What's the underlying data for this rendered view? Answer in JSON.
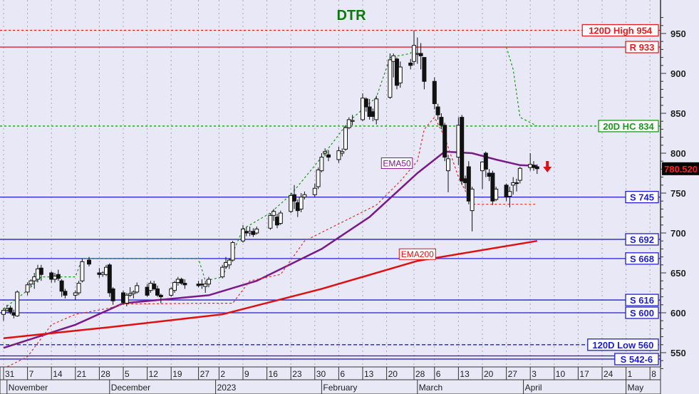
{
  "chart_data": {
    "type": "candlestick",
    "title": "DTR",
    "title_color": "#0a7a0a",
    "ylim": [
      530,
      975
    ],
    "yticks": [
      550,
      600,
      650,
      700,
      750,
      800,
      850,
      900,
      950
    ],
    "grid": "vertical dotted at weekly ticks",
    "last_price": "780.520",
    "xticks": [
      {
        "date": "2022-10-31",
        "label": "31"
      },
      {
        "date": "2022-11-07",
        "label": "7"
      },
      {
        "date": "2022-11-14",
        "label": "14"
      },
      {
        "date": "2022-11-21",
        "label": "21"
      },
      {
        "date": "2022-11-28",
        "label": "28"
      },
      {
        "date": "2022-12-05",
        "label": "5"
      },
      {
        "date": "2022-12-12",
        "label": "12"
      },
      {
        "date": "2022-12-19",
        "label": "19"
      },
      {
        "date": "2022-12-27",
        "label": "27"
      },
      {
        "date": "2023-01-02",
        "label": "2"
      },
      {
        "date": "2023-01-09",
        "label": "9"
      },
      {
        "date": "2023-01-16",
        "label": "16"
      },
      {
        "date": "2023-01-23",
        "label": "23"
      },
      {
        "date": "2023-01-30",
        "label": "30"
      },
      {
        "date": "2023-02-06",
        "label": "6"
      },
      {
        "date": "2023-02-13",
        "label": "13"
      },
      {
        "date": "2023-02-20",
        "label": "20"
      },
      {
        "date": "2023-02-28",
        "label": "28"
      },
      {
        "date": "2023-03-06",
        "label": "6"
      },
      {
        "date": "2023-03-13",
        "label": "13"
      },
      {
        "date": "2023-03-20",
        "label": "20"
      },
      {
        "date": "2023-03-27",
        "label": "27"
      },
      {
        "date": "2023-04-03",
        "label": "3"
      },
      {
        "date": "2023-04-10",
        "label": "10"
      },
      {
        "date": "2023-04-17",
        "label": "17"
      },
      {
        "date": "2023-04-24",
        "label": "24"
      },
      {
        "date": "2023-05-01",
        "label": "1"
      },
      {
        "date": "2023-05-08",
        "label": "8"
      }
    ],
    "months": [
      {
        "date": "2022-11-01",
        "label": "November"
      },
      {
        "date": "2022-12-01",
        "label": "December"
      },
      {
        "date": "2023-01-01",
        "label": "2023"
      },
      {
        "date": "2023-02-01",
        "label": "February"
      },
      {
        "date": "2023-03-01",
        "label": "March"
      },
      {
        "date": "2023-04-01",
        "label": "April"
      },
      {
        "date": "2023-05-01",
        "label": "May"
      }
    ],
    "candles_columns": [
      "date",
      "open",
      "high",
      "low",
      "close"
    ],
    "candles": [
      [
        "2022-10-31",
        598,
        606,
        590,
        603
      ],
      [
        "2022-11-01",
        603,
        610,
        600,
        605
      ],
      [
        "2022-11-02",
        606,
        609,
        598,
        601
      ],
      [
        "2022-11-03",
        600,
        604,
        593,
        597
      ],
      [
        "2022-11-04",
        596,
        628,
        595,
        626
      ],
      [
        "2022-11-07",
        626,
        638,
        622,
        635
      ],
      [
        "2022-11-08",
        636,
        642,
        633,
        640
      ],
      [
        "2022-11-09",
        640,
        650,
        630,
        645
      ],
      [
        "2022-11-10",
        642,
        660,
        638,
        655
      ],
      [
        "2022-11-11",
        656,
        660,
        640,
        648
      ],
      [
        "2022-11-14",
        650,
        652,
        638,
        642
      ],
      [
        "2022-11-15",
        642,
        650,
        638,
        646
      ],
      [
        "2022-11-16",
        648,
        654,
        640,
        643
      ],
      [
        "2022-11-17",
        640,
        642,
        620,
        627
      ],
      [
        "2022-11-18",
        627,
        630,
        618,
        622
      ],
      [
        "2022-11-21",
        622,
        628,
        616,
        625
      ],
      [
        "2022-11-22",
        625,
        640,
        622,
        637
      ],
      [
        "2022-11-23",
        640,
        668,
        638,
        664
      ],
      [
        "2022-11-25",
        666,
        670,
        658,
        661
      ],
      [
        "2022-11-28",
        650,
        656,
        644,
        648
      ],
      [
        "2022-11-29",
        648,
        652,
        645,
        650
      ],
      [
        "2022-11-30",
        648,
        660,
        646,
        657
      ],
      [
        "2022-12-01",
        660,
        662,
        620,
        625
      ],
      [
        "2022-12-02",
        630,
        632,
        610,
        615
      ],
      [
        "2022-12-05",
        625,
        628,
        610,
        613
      ],
      [
        "2022-12-06",
        612,
        625,
        608,
        622
      ],
      [
        "2022-12-07",
        622,
        632,
        620,
        624
      ],
      [
        "2022-12-08",
        624,
        628,
        618,
        626
      ],
      [
        "2022-12-09",
        626,
        638,
        624,
        634
      ],
      [
        "2022-12-12",
        632,
        636,
        620,
        622
      ],
      [
        "2022-12-13",
        628,
        640,
        625,
        637
      ],
      [
        "2022-12-14",
        636,
        640,
        628,
        630
      ],
      [
        "2022-12-15",
        630,
        634,
        620,
        622
      ],
      [
        "2022-12-16",
        622,
        624,
        612,
        620
      ],
      [
        "2022-12-19",
        622,
        632,
        620,
        630
      ],
      [
        "2022-12-20",
        628,
        640,
        625,
        638
      ],
      [
        "2022-12-21",
        638,
        645,
        634,
        642
      ],
      [
        "2022-12-22",
        642,
        644,
        635,
        637
      ],
      [
        "2022-12-23",
        637,
        642,
        630,
        635
      ],
      [
        "2022-12-27",
        636,
        640,
        632,
        634
      ],
      [
        "2022-12-28",
        636,
        642,
        630,
        635
      ],
      [
        "2022-12-29",
        633,
        640,
        625,
        636
      ],
      [
        "2022-12-30",
        636,
        645,
        632,
        642
      ],
      [
        "2023-01-03",
        645,
        660,
        643,
        657
      ],
      [
        "2023-01-04",
        658,
        670,
        655,
        663
      ],
      [
        "2023-01-05",
        660,
        668,
        655,
        666
      ],
      [
        "2023-01-06",
        666,
        690,
        664,
        688
      ],
      [
        "2023-01-09",
        690,
        710,
        688,
        705
      ],
      [
        "2023-01-10",
        702,
        708,
        696,
        700
      ],
      [
        "2023-01-11",
        700,
        708,
        696,
        702
      ],
      [
        "2023-01-12",
        702,
        706,
        695,
        698
      ],
      [
        "2023-01-13",
        700,
        708,
        698,
        705
      ],
      [
        "2023-01-17",
        706,
        725,
        704,
        722
      ],
      [
        "2023-01-18",
        722,
        730,
        715,
        727
      ],
      [
        "2023-01-19",
        720,
        724,
        706,
        710
      ],
      [
        "2023-01-20",
        712,
        728,
        710,
        725
      ],
      [
        "2023-01-23",
        727,
        750,
        725,
        747
      ],
      [
        "2023-01-24",
        748,
        760,
        730,
        740
      ],
      [
        "2023-01-25",
        738,
        742,
        720,
        728
      ],
      [
        "2023-01-26",
        730,
        750,
        726,
        745
      ],
      [
        "2023-01-27",
        745,
        752,
        742,
        748
      ],
      [
        "2023-01-30",
        748,
        762,
        745,
        756
      ],
      [
        "2023-01-31",
        758,
        782,
        755,
        779
      ],
      [
        "2023-02-01",
        778,
        800,
        776,
        795
      ],
      [
        "2023-02-02",
        800,
        806,
        796,
        802
      ],
      [
        "2023-02-03",
        798,
        804,
        790,
        795
      ],
      [
        "2023-02-06",
        792,
        808,
        788,
        803
      ],
      [
        "2023-02-07",
        800,
        806,
        796,
        802
      ],
      [
        "2023-02-08",
        805,
        835,
        803,
        832
      ],
      [
        "2023-02-09",
        832,
        845,
        830,
        842
      ],
      [
        "2023-02-10",
        840,
        848,
        835,
        841
      ],
      [
        "2023-02-13",
        842,
        875,
        840,
        869
      ],
      [
        "2023-02-14",
        868,
        870,
        852,
        858
      ],
      [
        "2023-02-15",
        858,
        868,
        842,
        846
      ],
      [
        "2023-02-16",
        852,
        856,
        840,
        846
      ],
      [
        "2023-02-17",
        842,
        872,
        836,
        868
      ],
      [
        "2023-02-21",
        870,
        925,
        868,
        917
      ],
      [
        "2023-02-22",
        915,
        925,
        895,
        922
      ],
      [
        "2023-02-23",
        918,
        920,
        880,
        885
      ],
      [
        "2023-02-24",
        888,
        915,
        882,
        908
      ],
      [
        "2023-02-27",
        913,
        918,
        905,
        910
      ],
      [
        "2023-02-28",
        915,
        954,
        910,
        935
      ],
      [
        "2023-03-01",
        925,
        945,
        912,
        925
      ],
      [
        "2023-03-02",
        925,
        938,
        905,
        922
      ],
      [
        "2023-03-03",
        920,
        920,
        880,
        890
      ],
      [
        "2023-03-06",
        890,
        895,
        855,
        862
      ],
      [
        "2023-03-07",
        858,
        862,
        842,
        848
      ],
      [
        "2023-03-08",
        845,
        850,
        830,
        835
      ],
      [
        "2023-03-09",
        835,
        838,
        790,
        795
      ],
      [
        "2023-03-10",
        778,
        798,
        751,
        793
      ],
      [
        "2023-03-13",
        795,
        845,
        785,
        835
      ],
      [
        "2023-03-14",
        845,
        848,
        760,
        765
      ],
      [
        "2023-03-15",
        768,
        772,
        755,
        763
      ],
      [
        "2023-03-16",
        783,
        790,
        736,
        740
      ],
      [
        "2023-03-17",
        728,
        758,
        702,
        755
      ],
      [
        "2023-03-20",
        778,
        790,
        755,
        789
      ],
      [
        "2023-03-21",
        800,
        802,
        770,
        780
      ],
      [
        "2023-03-22",
        775,
        780,
        765,
        771
      ],
      [
        "2023-03-23",
        775,
        778,
        735,
        740
      ],
      [
        "2023-03-24",
        742,
        758,
        740,
        755
      ],
      [
        "2023-03-27",
        760,
        762,
        740,
        745
      ],
      [
        "2023-03-28",
        746,
        758,
        732,
        752
      ],
      [
        "2023-03-29",
        760,
        770,
        748,
        763
      ],
      [
        "2023-03-30",
        763,
        768,
        752,
        762
      ],
      [
        "2023-03-31",
        766,
        783,
        762,
        781
      ],
      [
        "2023-04-03",
        782,
        800,
        778,
        786
      ],
      [
        "2023-04-04",
        785,
        790,
        778,
        782
      ],
      [
        "2023-04-05",
        783,
        786,
        774,
        780.52
      ]
    ],
    "overlays": [
      {
        "name": "EMA50",
        "color": "#7a1a8a",
        "style": "solid",
        "points": [
          [
            "2022-10-31",
            556
          ],
          [
            "2022-11-21",
            585
          ],
          [
            "2022-12-05",
            612
          ],
          [
            "2022-12-30",
            622
          ],
          [
            "2023-01-13",
            640
          ],
          [
            "2023-02-01",
            680
          ],
          [
            "2023-02-15",
            720
          ],
          [
            "2023-03-01",
            775
          ],
          [
            "2023-03-09",
            802
          ],
          [
            "2023-03-17",
            800
          ],
          [
            "2023-03-24",
            792
          ],
          [
            "2023-03-31",
            785
          ],
          [
            "2023-04-05",
            784
          ]
        ]
      },
      {
        "name": "EMA200",
        "color": "#e01010",
        "style": "solid",
        "points": [
          [
            "2022-10-31",
            568
          ],
          [
            "2022-12-01",
            582
          ],
          [
            "2023-01-03",
            598
          ],
          [
            "2023-02-01",
            630
          ],
          [
            "2023-03-01",
            665
          ],
          [
            "2023-04-05",
            690
          ]
        ]
      },
      {
        "color": "#e03030",
        "style": "dotted",
        "points": [
          [
            "2022-10-31",
            530
          ],
          [
            "2022-11-07",
            545
          ],
          [
            "2022-11-14",
            585
          ],
          [
            "2022-11-21",
            598
          ],
          [
            "2022-12-01",
            606
          ],
          [
            "2022-12-05",
            611
          ],
          [
            "2022-12-30",
            612
          ],
          [
            "2023-01-06",
            612
          ],
          [
            "2023-01-11",
            640
          ],
          [
            "2023-01-20",
            648
          ],
          [
            "2023-01-27",
            690
          ],
          [
            "2023-02-03",
            705
          ],
          [
            "2023-02-10",
            720
          ],
          [
            "2023-02-17",
            735
          ],
          [
            "2023-02-24",
            765
          ],
          [
            "2023-03-01",
            790
          ],
          [
            "2023-03-03",
            830
          ],
          [
            "2023-03-06",
            845
          ],
          [
            "2023-03-09",
            820
          ],
          [
            "2023-03-13",
            770
          ],
          [
            "2023-03-17",
            736
          ],
          [
            "2023-04-05",
            736
          ]
        ]
      },
      {
        "color": "#1a9a1a",
        "style": "dotted",
        "points": [
          [
            "2022-10-31",
            605
          ],
          [
            "2022-11-07",
            628
          ],
          [
            "2022-11-11",
            645
          ],
          [
            "2022-11-21",
            645
          ],
          [
            "2022-11-23",
            668
          ],
          [
            "2022-12-27",
            668
          ],
          [
            "2022-12-29",
            640
          ],
          [
            "2023-01-03",
            645
          ],
          [
            "2023-01-09",
            705
          ],
          [
            "2023-01-17",
            725
          ],
          [
            "2023-01-23",
            748
          ],
          [
            "2023-02-01",
            795
          ],
          [
            "2023-02-09",
            840
          ],
          [
            "2023-02-17",
            870
          ],
          [
            "2023-02-21",
            920
          ],
          [
            "2023-02-27",
            925
          ],
          [
            "2023-02-28",
            935
          ]
        ]
      },
      {
        "color": "#1a9a1a",
        "style": "dotted",
        "points": [
          [
            "2023-03-27",
            933
          ],
          [
            "2023-03-29",
            905
          ],
          [
            "2023-03-31",
            845
          ],
          [
            "2023-04-05",
            834
          ]
        ]
      }
    ],
    "series_labels": [
      {
        "text": "EMA50",
        "value": 787,
        "date": "2023-02-23",
        "color": "#7a1a8a"
      },
      {
        "text": "EMA200",
        "value": 673,
        "date": "2023-03-01",
        "color": "#e01010"
      }
    ],
    "levels": [
      {
        "value": 954,
        "label": "120D High 954",
        "color": "#e02020",
        "style": "dotted"
      },
      {
        "value": 933,
        "label": "R 933",
        "color": "#e02020",
        "style": "solid"
      },
      {
        "value": 834,
        "label": "20D HC 834",
        "color": "#1a9a1a",
        "style": "dotted"
      },
      {
        "value": 745,
        "label": "S 745",
        "color": "#2020d0",
        "style": "solid"
      },
      {
        "value": 692,
        "label": "S 692",
        "color": "#2020d0",
        "style": "solid"
      },
      {
        "value": 668,
        "label": "S 668",
        "color": "#2020d0",
        "style": "solid"
      },
      {
        "value": 616,
        "label": "S 616",
        "color": "#2020d0",
        "style": "solid"
      },
      {
        "value": 600,
        "label": "S 600",
        "color": "#2020d0",
        "style": "solid"
      },
      {
        "value": 560,
        "label": "120D Low 560",
        "color": "#2020d0",
        "style": "dashed"
      },
      {
        "value": 546,
        "label": "",
        "color": "#2020d0",
        "style": "solid"
      },
      {
        "value": 542,
        "label": "S 542-6",
        "color": "#2020d0",
        "style": "solid"
      }
    ],
    "signal": {
      "icon": "red-down-arrow-icon",
      "color": "#e01010",
      "date": "2023-04-08",
      "value": 783
    }
  }
}
